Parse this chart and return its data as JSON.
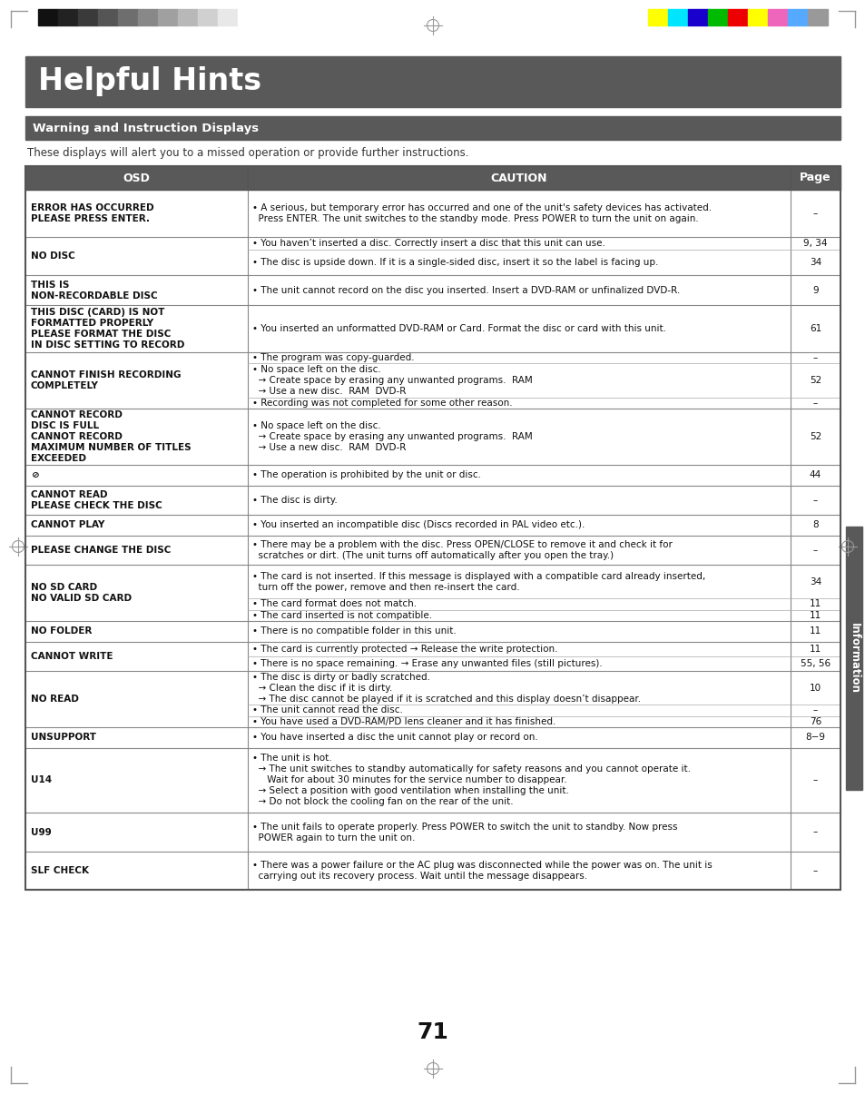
{
  "title": "Helpful Hints",
  "title_bg": "#595959",
  "title_color": "#ffffff",
  "subtitle": "Warning and Instruction Displays",
  "subtitle_bg": "#595959",
  "subtitle_color": "#ffffff",
  "intro_text": "These displays will alert you to a missed operation or provide further instructions.",
  "header_bg": "#595959",
  "header_color": "#ffffff",
  "col_headers": [
    "OSD",
    "CAUTION",
    "Page"
  ],
  "page_number": "71",
  "bg_color": "#ffffff",
  "row_border_color": "#888888",
  "table_border_color": "#555555",
  "info_sidebar_color": "#595959",
  "info_sidebar_text": "Information",
  "color_bars_left": [
    "#111111",
    "#222222",
    "#3a3a3a",
    "#555555",
    "#6e6e6e",
    "#888888",
    "#a0a0a0",
    "#b8b8b8",
    "#d0d0d0",
    "#e8e8e8",
    "#ffffff"
  ],
  "color_bars_right": [
    "#ffff00",
    "#00e5ff",
    "#1a00cc",
    "#00bb00",
    "#ee0000",
    "#ffff00",
    "#ee66bb",
    "#55aaff",
    "#999999"
  ]
}
